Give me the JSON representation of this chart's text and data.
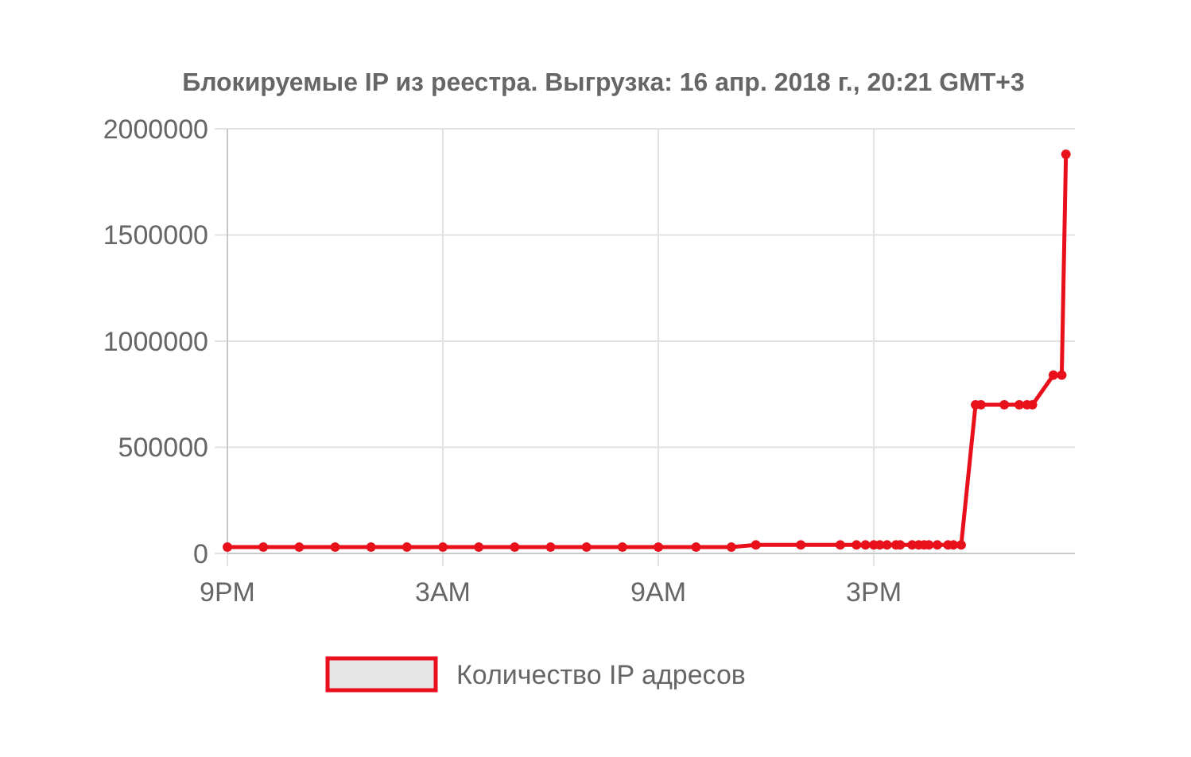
{
  "chart_data": {
    "type": "line",
    "title": "Блокируемые IP из реестра. Выгрузка: 16 апр. 2018 г., 20:21 GMT+3",
    "xlim": [
      "2018-04-15T21:00",
      "2018-04-16T20:36"
    ],
    "xticks": [
      {
        "value": "2018-04-15T21:00",
        "label": "9PM"
      },
      {
        "value": "2018-04-16T03:00",
        "label": "3AM"
      },
      {
        "value": "2018-04-16T09:00",
        "label": "9AM"
      },
      {
        "value": "2018-04-16T15:00",
        "label": "3PM"
      }
    ],
    "ylim": [
      0,
      2000000
    ],
    "yticks": [
      0,
      500000,
      1000000,
      1500000,
      2000000
    ],
    "grid": true,
    "legend": "bottom",
    "marker": "circle",
    "line_style": "solid",
    "series": [
      {
        "name": "Количество IP адресов",
        "color": "#e8101a",
        "x": [
          "2018-04-15T21:00",
          "2018-04-15T22:00",
          "2018-04-15T23:00",
          "2018-04-16T00:00",
          "2018-04-16T01:00",
          "2018-04-16T02:00",
          "2018-04-16T03:00",
          "2018-04-16T04:00",
          "2018-04-16T05:00",
          "2018-04-16T06:00",
          "2018-04-16T07:00",
          "2018-04-16T08:00",
          "2018-04-16T09:00",
          "2018-04-16T10:03",
          "2018-04-16T11:02",
          "2018-04-16T11:43",
          "2018-04-16T12:58",
          "2018-04-16T14:04",
          "2018-04-16T14:31",
          "2018-04-16T14:46",
          "2018-04-16T15:00",
          "2018-04-16T15:10",
          "2018-04-16T15:22",
          "2018-04-16T15:37",
          "2018-04-16T15:44",
          "2018-04-16T16:04",
          "2018-04-16T16:15",
          "2018-04-16T16:24",
          "2018-04-16T16:32",
          "2018-04-16T16:46",
          "2018-04-16T17:04",
          "2018-04-16T17:13",
          "2018-04-16T17:26",
          "2018-04-16T17:50",
          "2018-04-16T17:59",
          "2018-04-16T18:38",
          "2018-04-16T19:03",
          "2018-04-16T19:16",
          "2018-04-16T19:25",
          "2018-04-16T20:00",
          "2018-04-16T20:14",
          "2018-04-16T20:21"
        ],
        "values": [
          30000,
          30000,
          30000,
          30000,
          30000,
          30000,
          30000,
          30000,
          30000,
          30000,
          30000,
          30000,
          30000,
          30000,
          30000,
          40000,
          40000,
          40000,
          40000,
          40000,
          40000,
          40000,
          40000,
          40000,
          40000,
          40000,
          40000,
          40000,
          40000,
          40000,
          40000,
          40000,
          40000,
          700000,
          700000,
          700000,
          700000,
          700000,
          700000,
          840000,
          840000,
          1880000
        ]
      }
    ]
  }
}
